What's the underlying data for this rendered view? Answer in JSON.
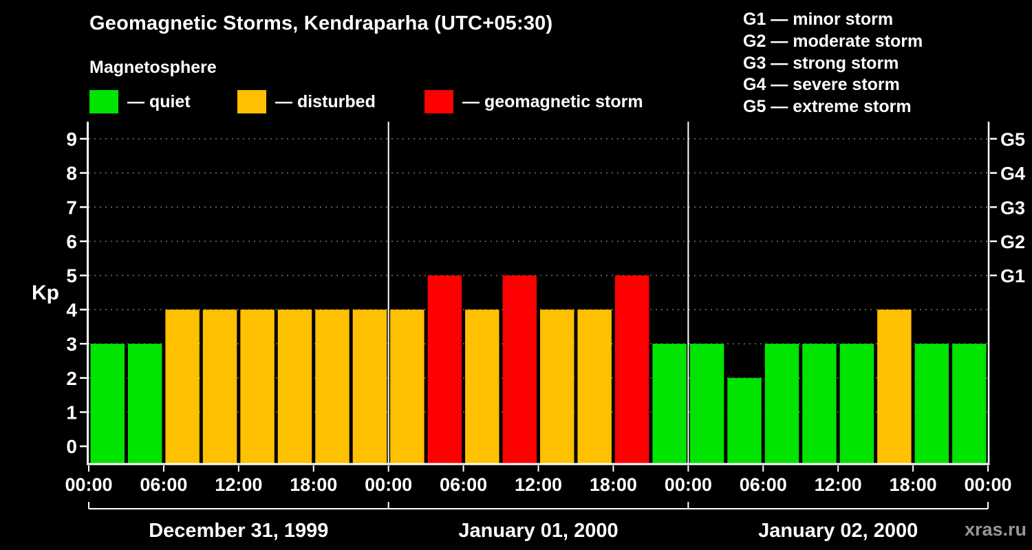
{
  "title": "Geomagnetic Storms, Kendraparha (UTC+05:30)",
  "subtitle": "Magnetosphere",
  "kp_legend": [
    {
      "name": "quiet",
      "label": "— quiet",
      "color": "#00e400"
    },
    {
      "name": "disturbed",
      "label": "— disturbed",
      "color": "#ffc000"
    },
    {
      "name": "storm",
      "label": "— geomagnetic storm",
      "color": "#ff0000"
    }
  ],
  "storm_scale": [
    "G1 — minor storm",
    "G2 — moderate storm",
    "G3 — strong storm",
    "G4 — severe storm",
    "G5 — extreme storm"
  ],
  "watermark": "xras.ru",
  "chart_data": {
    "type": "bar",
    "title": "Geomagnetic Storms, Kendraparha (UTC+05:30)",
    "ylabel": "Kp",
    "ylim": [
      0,
      9
    ],
    "yticks": [
      0,
      1,
      2,
      3,
      4,
      5,
      6,
      7,
      8,
      9
    ],
    "right_axis": [
      {
        "kp": 9,
        "label": "G5"
      },
      {
        "kp": 8,
        "label": "G4"
      },
      {
        "kp": 7,
        "label": "G3"
      },
      {
        "kp": 6,
        "label": "G2"
      },
      {
        "kp": 5,
        "label": "G1"
      }
    ],
    "x_tick_labels": [
      "00:00",
      "06:00",
      "12:00",
      "18:00",
      "00:00",
      "06:00",
      "12:00",
      "18:00",
      "00:00",
      "06:00",
      "12:00",
      "18:00",
      "00:00"
    ],
    "bar_interval_hours": 3,
    "days": [
      {
        "date": "December 31, 1999",
        "kp_values": [
          3,
          3,
          4,
          4,
          4,
          4,
          4,
          4
        ]
      },
      {
        "date": "January 01, 2000",
        "kp_values": [
          4,
          5,
          4,
          5,
          4,
          4,
          5,
          3
        ]
      },
      {
        "date": "January 02, 2000",
        "kp_values": [
          3,
          2,
          3,
          3,
          3,
          4,
          3,
          3
        ]
      }
    ],
    "color_rules": {
      "quiet_max": 3,
      "disturbed": 4,
      "storm_min": 5
    },
    "colors": {
      "quiet": "#00e400",
      "disturbed": "#ffc000",
      "storm": "#ff0000"
    },
    "grid": "dotted horizontal",
    "legend_position": "top-left"
  }
}
